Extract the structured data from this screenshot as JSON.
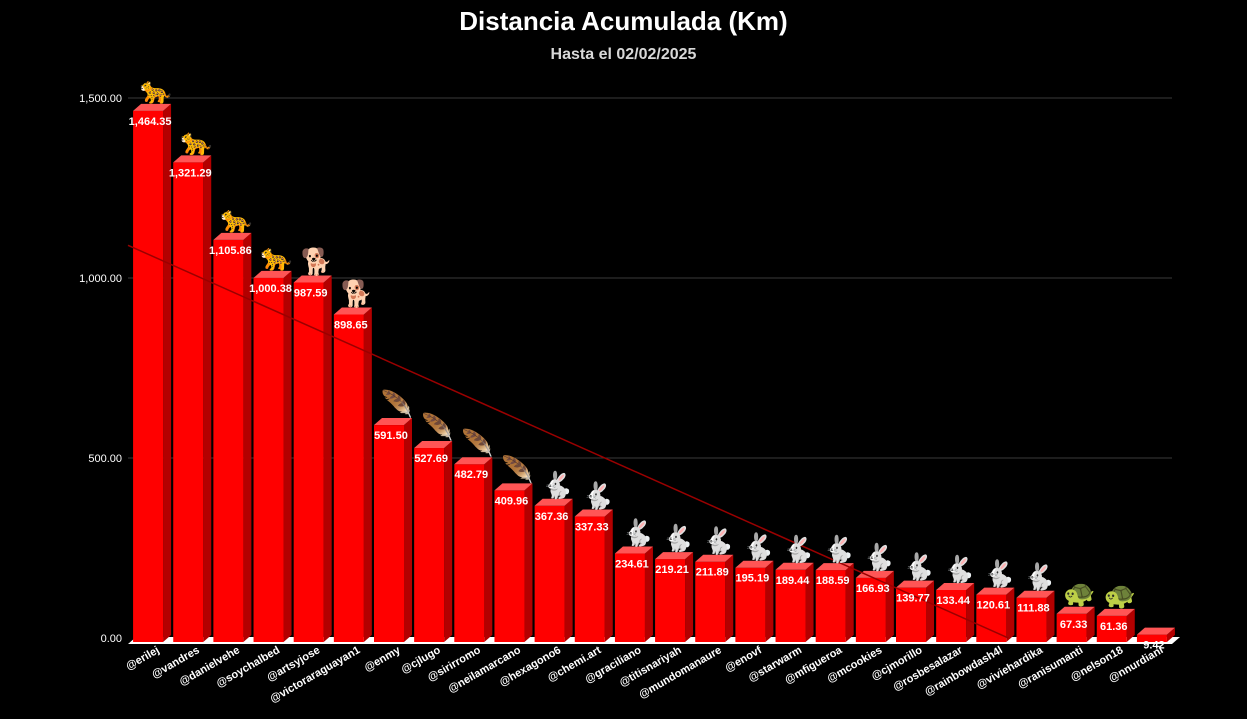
{
  "chart_data": {
    "type": "bar",
    "title": "Distancia Acumulada (Km)",
    "subtitle": "Hasta el 02/02/2025",
    "xlabel": "",
    "ylabel": "",
    "ylim": [
      0,
      1500
    ],
    "yticks": [
      0,
      500,
      1000,
      1500
    ],
    "ytick_labels": [
      "0.00",
      "500.00",
      "1,000.00",
      "1,500.00"
    ],
    "grid": true,
    "legend": "none",
    "trendline": true,
    "colors": {
      "bar_front": "#ff0000",
      "bar_side": "#b30000",
      "bar_top": "#ff5555",
      "trend": "#9a0000",
      "grid": "#3a3a3a",
      "floor": "#ffffff"
    },
    "categories": [
      "@erilej",
      "@vandres",
      "@danielvehe",
      "@soychalbed",
      "@artsyjose",
      "@victoraraguayan1",
      "@enmy",
      "@cjlugo",
      "@sirirromo",
      "@neilamarcano",
      "@hexagono6",
      "@chemi.art",
      "@graciliano",
      "@titisnariyah",
      "@mundomanaure",
      "@enovf",
      "@starwarm",
      "@mfigueroa",
      "@mcookies",
      "@cjmorillo",
      "@rosbesalazar",
      "@rainbowdash4l",
      "@viviehardika",
      "@ranisumanti",
      "@nelson18",
      "@nnurdiani"
    ],
    "values": [
      1464.35,
      1321.29,
      1105.86,
      1000.38,
      987.59,
      898.65,
      591.5,
      527.69,
      482.79,
      409.96,
      367.36,
      337.33,
      234.61,
      219.21,
      211.89,
      195.19,
      189.44,
      188.59,
      166.93,
      139.77,
      133.44,
      120.61,
      111.88,
      67.33,
      61.36,
      9.42
    ],
    "value_labels": [
      "1,464.35",
      "1,321.29",
      "1,105.86",
      "1,000.38",
      "987.59",
      "898.65",
      "591.50",
      "527.69",
      "482.79",
      "409.96",
      "367.36",
      "337.33",
      "234.61",
      "219.21",
      "211.89",
      "195.19",
      "189.44",
      "188.59",
      "166.93",
      "139.77",
      "133.44",
      "120.61",
      "111.88",
      "67.33",
      "61.36",
      "9.42"
    ],
    "icons": [
      "leopard-icon",
      "leopard-icon",
      "leopard-icon",
      "leopard-icon",
      "dog-icon",
      "dog-icon",
      "feather-icon",
      "feather-icon",
      "feather-icon",
      "feather-icon",
      "rabbit-icon",
      "rabbit-icon",
      "rabbit-icon",
      "rabbit-icon",
      "rabbit-icon",
      "rabbit-icon",
      "rabbit-icon",
      "rabbit-icon",
      "rabbit-icon",
      "rabbit-icon",
      "rabbit-icon",
      "rabbit-icon",
      "rabbit-icon",
      "turtle-icon",
      "turtle-icon",
      ""
    ]
  }
}
